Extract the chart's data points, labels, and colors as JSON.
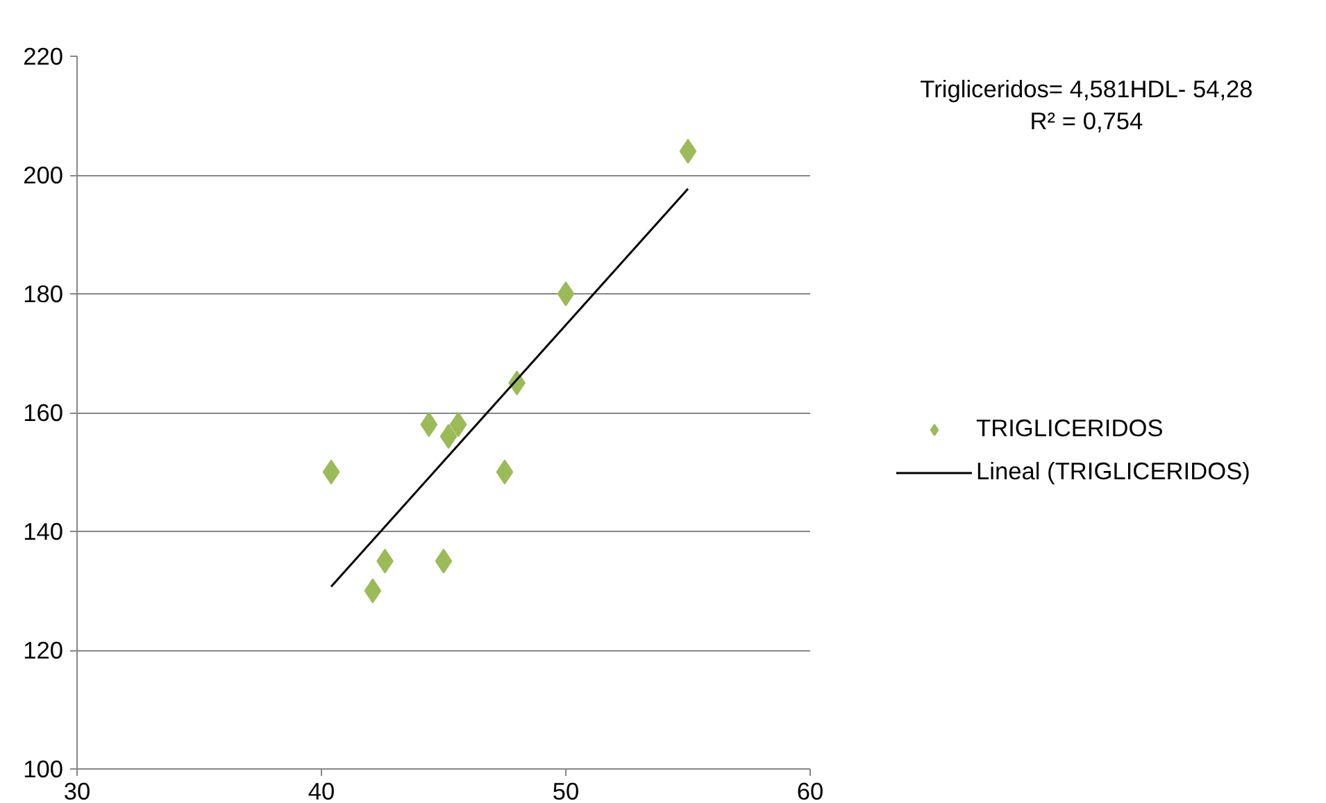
{
  "chart_data": {
    "type": "scatter",
    "xlim": [
      30,
      60
    ],
    "ylim": [
      100,
      220
    ],
    "xticks": [
      30,
      40,
      50,
      60
    ],
    "yticks": [
      100,
      120,
      140,
      160,
      180,
      200,
      220
    ],
    "grid": "y",
    "legend": "right",
    "marker": "diamond",
    "annotations": [
      "Trigliceridos= 4,581HDL- 54,28",
      "R² = 0,754"
    ],
    "series": [
      {
        "name": "TRIGLICERIDOS",
        "color": "#9bbb59",
        "x": [
          40.4,
          42.1,
          42.6,
          44.4,
          45.0,
          45.2,
          45.6,
          47.5,
          48.0,
          50.0,
          55.0
        ],
        "values": [
          150,
          130,
          135,
          158,
          135,
          156,
          158,
          150,
          165,
          180,
          204
        ]
      },
      {
        "name": "Lineal (TRIGLICERIDOS)",
        "type": "line",
        "color": "#000000",
        "marker": "none",
        "line_style": "solid",
        "x": [
          40.4,
          55.0
        ],
        "values": [
          130.7,
          197.7
        ]
      }
    ]
  }
}
